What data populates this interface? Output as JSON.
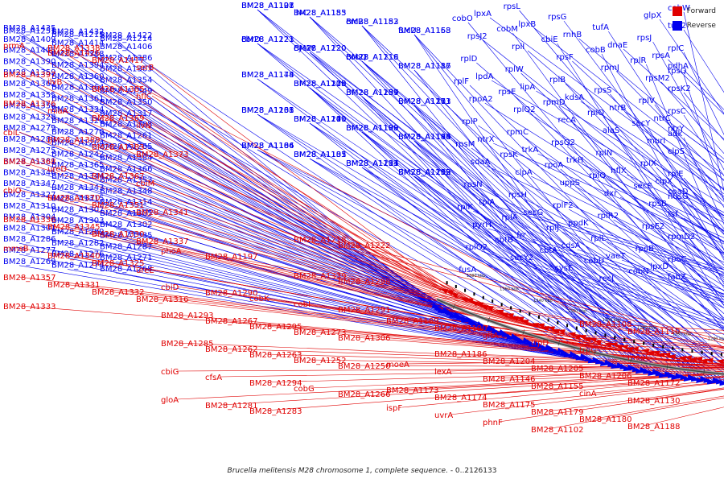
{
  "legend": {
    "forward": {
      "label": "Forward",
      "color": "#e00000"
    },
    "reverse": {
      "label": "Reverse",
      "color": "#0000ee"
    }
  },
  "caption": {
    "species": "Brucella melitensis M28 chromosome 1, complete sequence.",
    "range": "- 0..2126133"
  },
  "scale_labels": [
    "1380 kbp",
    "1360 kbp",
    "1340 kbp",
    "1320 kbp",
    "1300 kbp",
    "1280 kbp",
    "1260 kbp",
    "1240 kbp",
    "1220 kbp",
    "1200 kbp",
    "1180 kbp",
    "1160 kbp",
    "1140 kbp",
    "1120 kbp",
    "1100 kbp",
    "1080 kbp"
  ],
  "reverse_genes": [
    "BM28_A1435",
    "BM28_A1432",
    "BM28_A1422",
    "BM28_A1409",
    "BM28_A1414",
    "BM28_A1406",
    "BM28_A1405",
    "BM28_A1388",
    "BM28_A1386",
    "BM28_A1390",
    "BM28_A1394",
    "BM28_A1363",
    "BM28_A1359",
    "BM28_A1360",
    "BM28_A1354",
    "BM28_A1362",
    "BM28_A1364",
    "BM28_A1349",
    "BM28_A1355",
    "BM28_A1361",
    "BM28_A1350",
    "BM28_A1356",
    "BM28_A1334",
    "BM28_A1317",
    "BM28_A1328",
    "BM28_A1329",
    "BM28_A1308",
    "BM28_A1279",
    "BM28_A1270",
    "BM28_A1261",
    "BM28_A1288",
    "BM28_A1264",
    "BM28_A1265",
    "BM28_A1275",
    "BM28_A1242",
    "BM28_A1384",
    "BM28_A1381",
    "BM28_A1365",
    "BM28_A1366",
    "BM28_A1346",
    "BM28_A1344",
    "BM28_A1353",
    "BM28_A1347",
    "BM28_A1343",
    "BM28_A1348",
    "BM28_A1327",
    "BM28_A1315",
    "BM28_A1314",
    "BM28_A1310",
    "BM28_A1307",
    "BM28_A1305",
    "BM28_A1304",
    "BM28_A1303",
    "BM28_A1302",
    "BM28_A1301",
    "BM28_A1289",
    "BM28_A1335",
    "BM28_A1286",
    "BM28_A1282",
    "BM28_A1287",
    "BM28_A1277",
    "BM28_A1276",
    "BM28_A1271",
    "BM28_A1269",
    "BM28_A1274",
    "BM28_A1268",
    "BM28_A1251",
    "BM28_A1215",
    "BM28_A1214",
    "BM28_A1208",
    "BM28_A1207",
    "BM28_A1203",
    "BM28_A1201",
    "BM28_A1200",
    "BM28_A1199",
    "BM28_A1194",
    "BM28_A1184",
    "BM28_A1181",
    "BM28_A1213",
    "BM28_A1212",
    "BM28_A1198",
    "BM28_A1185",
    "BM28_A1183",
    "BM28_A1158",
    "BM28_A1223",
    "BM28_A1220",
    "BM28_A1216",
    "BM28_A1187",
    "BM28_A1178",
    "BM28_A1170",
    "BM28_A1154",
    "BM28_A1171",
    "BM28_A1168",
    "BM28_A1140",
    "BM28_A1138",
    "BM28_A1136",
    "BM28_A1166",
    "BM28_A1133",
    "BM28_A1131",
    "BM28_A1159",
    "BM28_A1127",
    "BM28_A1153",
    "BM28_A1152",
    "BM28_A1163",
    "BM28_A1121",
    "BM28_A1120",
    "BM28_A1118",
    "BM28_A1116",
    "BM28_A1144",
    "BM28_A1115",
    "BM28_A1139",
    "BM28_A1113",
    "BM28_A1135",
    "BM28_A1111",
    "BM28_A1109",
    "BM28_A1143",
    "BM28_A1106",
    "BM28_A1105",
    "BM28_A1104",
    "BM28_A1103",
    "BM28_A1101",
    "ilvC",
    "crcB",
    "fucU",
    "cbrD",
    "cysW",
    "cobQ",
    "cbtB",
    "cbtA",
    "cobU",
    "cobN",
    "cobW",
    "cobO",
    "cobM",
    "cbiE",
    "cobB",
    "rplR",
    "rpsQ",
    "rplF",
    "rpsE",
    "rpmD",
    "rplO",
    "secY",
    "adk",
    "rpsM",
    "rpsK",
    "rpoA",
    "rplQ",
    "secE",
    "nusG",
    "rplK",
    "rplA",
    "rplJ",
    "rplL",
    "rpoB",
    "rpoC",
    "fusA",
    "rpsL",
    "rpsG",
    "tufA",
    "rpsJ",
    "rplC",
    "rplD",
    "rplW",
    "rplB",
    "rpsS",
    "rplV",
    "rpsC",
    "rplP",
    "rpmC",
    "rpsQ2",
    "rplN",
    "rplX",
    "rplE",
    "rpsN",
    "rpsH",
    "rplF2",
    "rplR2",
    "rpsE2",
    "rpmD2",
    "rplO2",
    "secY2",
    "cysE",
    "recJ",
    "glpX",
    "tuf-2",
    "rpsJ2",
    "rplI",
    "rpsF",
    "rpmJ",
    "rpsM2",
    "rpsK2",
    "rpoA2",
    "rplQ2",
    "recA",
    "alaS",
    "murI",
    "clpS",
    "sdaA",
    "clpA",
    "uppS",
    "dxr",
    "rpsB",
    "tsf",
    "pyrH",
    "frr",
    "cdsA",
    "vaeT",
    "lpxD",
    "fabZ",
    "lpxA",
    "lpxB",
    "rnhB",
    "dnaE",
    "rpsA",
    "pdhA",
    "lpdA",
    "lipA",
    "kdsA",
    "ntrB",
    "ntrC",
    "ntrY",
    "ntrX",
    "trkA",
    "trkH",
    "hflX",
    "clpX",
    "coaD",
    "tpiA",
    "secG",
    "ppdK"
  ],
  "forward_genes": [
    "prmA",
    "BM28_A1426",
    "BM28_A1417",
    "serB",
    "BM28_A1397",
    "ilvB",
    "BM28_A1385",
    "hflC",
    "BM28_A1376",
    "miaA",
    "BM28_A1369",
    "ilvN",
    "cbiL",
    "BM28_A1389",
    "BM28_A1383",
    "BM28_A1373",
    "BM28_A1368",
    "ureD",
    "BM28_A1367",
    "cbiM",
    "cbiO",
    "BM28_A1370",
    "BM28_A1351",
    "BM28_A1341",
    "BM28_A1336",
    "BM28_A1345",
    "BM28_A1330",
    "BM28_A1337",
    "mmsB",
    "BM28_A1340",
    "BM28_A1325",
    "ureE",
    "BM28_A1357",
    "BM28_A1331",
    "BM28_A1332",
    "BM28_A1316",
    "BM28_A1333",
    "BM28_A1338",
    "BM28_A1339",
    "BM28_A1298",
    "cbiD",
    "BM28_A1290",
    "cobK",
    "cobI",
    "BM28_A1291",
    "BM28_A1293",
    "BM28_A1267",
    "BM28_A1295",
    "BM28_A1273",
    "BM28_A1306",
    "BM28_A1285",
    "BM28_A1262",
    "BM28_A1263",
    "BM28_A1252",
    "BM28_A1250",
    "cbiG",
    "cfsA",
    "BM28_A1294",
    "cobG",
    "BM28_A1266",
    "gloA",
    "BM28_A1281",
    "BM28_A1283",
    "BM28_A1218",
    "BM28_A1222",
    "phoA",
    "BM28_A1197",
    "BM28_A1186",
    "BM28_A1204",
    "BM28_A1205",
    "BM28_A1206",
    "BM28_A1172",
    "BM28_A1173",
    "BM28_A1174",
    "BM28_A1175",
    "BM28_A1179",
    "BM28_A1180",
    "BM28_A1188",
    "BM28_A1189",
    "BM28_A1190",
    "gltA",
    "trpD",
    "trpC",
    "moaC",
    "moeA",
    "lexA",
    "BM28_A1146",
    "BM28_A1155",
    "cinA",
    "BM28_A1130",
    "ispF",
    "uvrA",
    "phnF",
    "BM28_A1102",
    "BM28_A1108",
    "BM28_A1110"
  ]
}
